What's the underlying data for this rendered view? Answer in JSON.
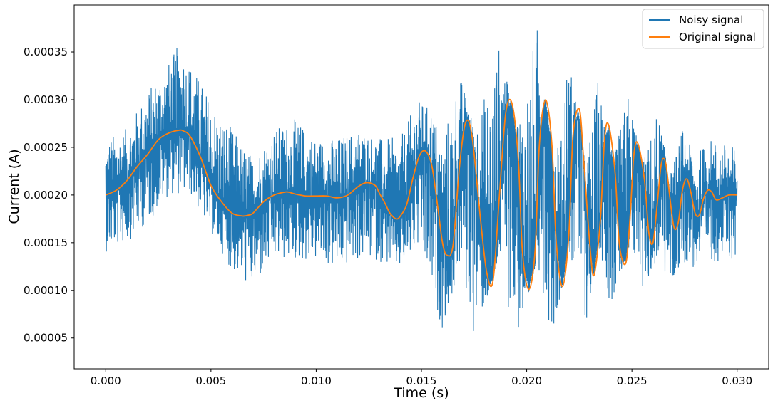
{
  "chart_data": {
    "type": "line",
    "xlabel": "Time (s)",
    "ylabel": "Current (A)",
    "xlim": [
      -0.0015,
      0.0315
    ],
    "ylim": [
      1.77e-05,
      0.0003993
    ],
    "x_ticks": [
      0.0,
      0.005,
      0.01,
      0.015,
      0.02,
      0.025,
      0.03
    ],
    "x_tick_labels": [
      "0.000",
      "0.005",
      "0.010",
      "0.015",
      "0.020",
      "0.025",
      "0.030"
    ],
    "y_ticks": [
      5e-05,
      0.0001,
      0.00015,
      0.0002,
      0.00025,
      0.0003,
      0.00035
    ],
    "y_tick_labels": [
      "0.00005",
      "0.00010",
      "0.00015",
      "0.00020",
      "0.00025",
      "0.00030",
      "0.00035"
    ],
    "grid": false,
    "legend": "top-right",
    "series": [
      {
        "name": "Noisy signal",
        "color": "#1f77b4",
        "description_of_noise_band": "dense high-frequency noise around the original signal",
        "upper_envelope": {
          "x": [
            0.0,
            0.001,
            0.002,
            0.003,
            0.0035,
            0.004,
            0.005,
            0.006,
            0.007,
            0.008,
            0.009,
            0.01,
            0.011,
            0.012,
            0.013,
            0.014,
            0.0148,
            0.0155,
            0.016,
            0.0168,
            0.0175,
            0.0187,
            0.0195,
            0.0205,
            0.0212,
            0.022,
            0.0228,
            0.0234,
            0.024,
            0.0248,
            0.0255,
            0.0262,
            0.0268,
            0.0274,
            0.028,
            0.0286,
            0.03
          ],
          "y": [
            0.00026,
            0.00027,
            0.00031,
            0.00034,
            0.00036,
            0.00034,
            0.0003,
            0.00027,
            0.00024,
            0.00027,
            0.00028,
            0.00026,
            0.00026,
            0.00027,
            0.00026,
            0.00026,
            0.0003,
            0.00029,
            0.00026,
            0.00033,
            0.00027,
            0.00036,
            0.00027,
            0.00038,
            0.00024,
            0.00035,
            0.00023,
            0.00033,
            0.00022,
            0.00031,
            0.00023,
            0.00029,
            0.00022,
            0.00027,
            0.00024,
            0.00026,
            0.00025
          ]
        },
        "lower_envelope": {
          "x": [
            0.0,
            0.001,
            0.002,
            0.003,
            0.004,
            0.005,
            0.006,
            0.007,
            0.008,
            0.009,
            0.01,
            0.011,
            0.012,
            0.013,
            0.014,
            0.0148,
            0.0155,
            0.016,
            0.0168,
            0.0175,
            0.0187,
            0.0195,
            0.0205,
            0.0212,
            0.022,
            0.0228,
            0.0234,
            0.024,
            0.0248,
            0.0255,
            0.0262,
            0.0268,
            0.0274,
            0.028,
            0.0286,
            0.03
          ],
          "y": [
            0.00014,
            0.00015,
            0.00017,
            0.0002,
            0.0002,
            0.00016,
            0.00012,
            0.0001,
            0.00013,
            0.00013,
            0.00013,
            0.00012,
            0.00013,
            0.00013,
            0.00012,
            0.00014,
            9e-05,
            6e-05,
            0.00012,
            5e-05,
            0.00013,
            4e-05,
            0.00013,
            5e-05,
            0.00014,
            6e-05,
            0.00015,
            8e-05,
            0.00014,
            0.0001,
            0.00013,
            0.0001,
            0.00013,
            0.00012,
            0.00013,
            0.00013
          ]
        }
      },
      {
        "name": "Original signal",
        "color": "#ff7f0e",
        "x": [
          0.0,
          0.0005,
          0.001,
          0.0015,
          0.002,
          0.0025,
          0.003,
          0.0035,
          0.0037,
          0.004,
          0.0045,
          0.005,
          0.0055,
          0.006,
          0.0065,
          0.0068,
          0.007,
          0.0075,
          0.008,
          0.0085,
          0.0087,
          0.009,
          0.0095,
          0.01,
          0.0105,
          0.011,
          0.0115,
          0.012,
          0.0124,
          0.0128,
          0.013,
          0.0133,
          0.0135,
          0.0138,
          0.014,
          0.0143,
          0.0146,
          0.0149,
          0.0152,
          0.0155,
          0.0158,
          0.016,
          0.0162,
          0.0165,
          0.0168,
          0.0171,
          0.0174,
          0.0178,
          0.0181,
          0.0184,
          0.0187,
          0.019,
          0.0193,
          0.0196,
          0.0198,
          0.0201,
          0.0204,
          0.0206,
          0.0209,
          0.0212,
          0.0214,
          0.0217,
          0.022,
          0.0222,
          0.0225,
          0.0227,
          0.023,
          0.0232,
          0.0235,
          0.0237,
          0.0239,
          0.0242,
          0.0244,
          0.0247,
          0.0249,
          0.0251,
          0.0253,
          0.0256,
          0.0258,
          0.026,
          0.0262,
          0.0264,
          0.0266,
          0.0268,
          0.027,
          0.0272,
          0.0274,
          0.0276,
          0.0278,
          0.028,
          0.0282,
          0.0284,
          0.0286,
          0.0288,
          0.029,
          0.0293,
          0.0296,
          0.03
        ],
        "y": [
          0.0002,
          0.000205,
          0.000215,
          0.00023,
          0.000243,
          0.000258,
          0.000265,
          0.000268,
          0.000267,
          0.000262,
          0.00024,
          0.00021,
          0.000193,
          0.000181,
          0.000178,
          0.000179,
          0.000181,
          0.000193,
          0.0002,
          0.000203,
          0.000203,
          0.000201,
          0.000199,
          0.000199,
          0.000199,
          0.000197,
          0.0002,
          0.000209,
          0.000213,
          0.00021,
          0.000202,
          0.00019,
          0.000181,
          0.000175,
          0.000178,
          0.00019,
          0.000218,
          0.000241,
          0.000246,
          0.00023,
          0.000183,
          0.00015,
          0.000137,
          0.000147,
          0.000228,
          0.000276,
          0.000262,
          0.000176,
          0.000119,
          0.00011,
          0.000198,
          0.000285,
          0.000296,
          0.000238,
          0.00014,
          0.000101,
          0.000142,
          0.000252,
          0.0003,
          0.000252,
          0.000152,
          0.000104,
          0.000158,
          0.000262,
          0.00029,
          0.000239,
          0.000148,
          0.000116,
          0.000174,
          0.000259,
          0.000273,
          0.000223,
          0.000149,
          0.000128,
          0.000173,
          0.000244,
          0.000253,
          0.000215,
          0.000161,
          0.00015,
          0.00019,
          0.000233,
          0.000234,
          0.000198,
          0.000166,
          0.000171,
          0.000205,
          0.000217,
          0.000203,
          0.000181,
          0.000179,
          0.000196,
          0.000205,
          0.000203,
          0.000195,
          0.000197,
          0.0002,
          0.0002
        ]
      }
    ]
  }
}
